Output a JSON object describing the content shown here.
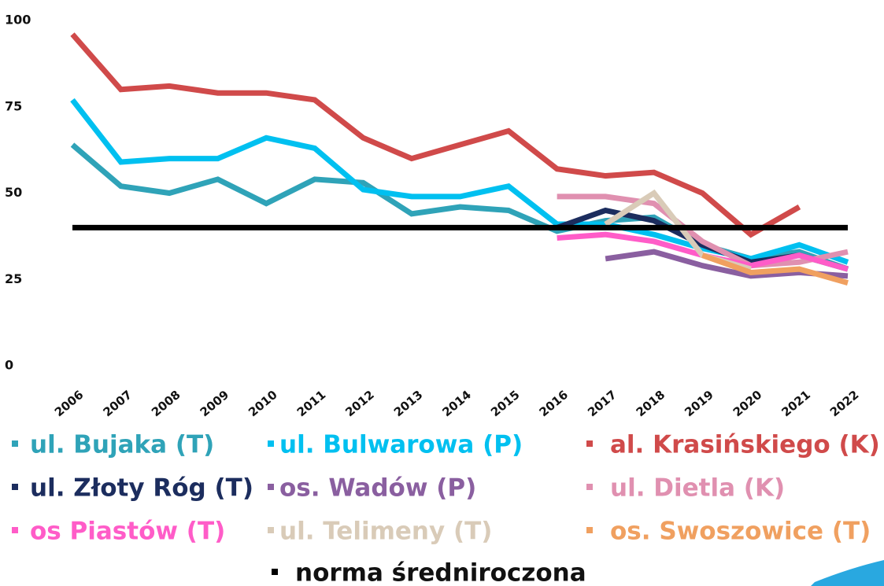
{
  "chart_data": {
    "type": "line",
    "categories": [
      "2006",
      "2007",
      "2008",
      "2009",
      "2010",
      "2011",
      "2012",
      "2013",
      "2014",
      "2015",
      "2016",
      "2017",
      "2018",
      "2019",
      "2020",
      "2021",
      "2022"
    ],
    "ylim": [
      0,
      100
    ],
    "yticks": [
      0,
      25,
      50,
      75,
      100
    ],
    "grid": false,
    "legend": "bottom",
    "series": [
      {
        "name": "ul. Bujaka (T)",
        "color": "#2fa3b8",
        "values": [
          64,
          52,
          50,
          54,
          47,
          54,
          53,
          44,
          46,
          45,
          39,
          42,
          43,
          35,
          31,
          33,
          28
        ]
      },
      {
        "name": "ul. Bulwarowa (P)",
        "color": "#00c0f0",
        "values": [
          77,
          59,
          60,
          60,
          66,
          63,
          51,
          49,
          49,
          52,
          41,
          41,
          38,
          34,
          31,
          35,
          30
        ]
      },
      {
        "name": "al. Krasińskiego (K)",
        "color": "#d04a4a",
        "values": [
          96,
          80,
          81,
          79,
          79,
          77,
          66,
          60,
          64,
          68,
          57,
          55,
          56,
          50,
          38,
          46,
          null
        ]
      },
      {
        "name": "ul. Złoty Róg (T)",
        "color": "#1c2d5e",
        "values": [
          null,
          null,
          null,
          null,
          null,
          null,
          null,
          null,
          null,
          null,
          40,
          45,
          42,
          35,
          30,
          32,
          28
        ]
      },
      {
        "name": "os. Wadów (P)",
        "color": "#8a5fa0",
        "values": [
          null,
          null,
          null,
          null,
          null,
          null,
          null,
          null,
          null,
          null,
          null,
          31,
          33,
          29,
          26,
          27,
          26
        ]
      },
      {
        "name": "ul. Dietla (K)",
        "color": "#e090b0",
        "values": [
          null,
          null,
          null,
          null,
          null,
          null,
          null,
          null,
          null,
          null,
          49,
          49,
          47,
          36,
          29,
          30,
          33
        ]
      },
      {
        "name": "os Piastów (T)",
        "color": "#ff5cc8",
        "values": [
          null,
          null,
          null,
          null,
          null,
          null,
          null,
          null,
          null,
          null,
          37,
          38,
          36,
          32,
          29,
          32,
          28
        ]
      },
      {
        "name": "ul. Telimeny (T)",
        "color": "#d9cbb8",
        "values": [
          null,
          null,
          null,
          null,
          null,
          null,
          null,
          null,
          null,
          null,
          null,
          41,
          50,
          32,
          28,
          null,
          null
        ]
      },
      {
        "name": "os. Swoszowice (T)",
        "color": "#f0a060",
        "values": [
          null,
          null,
          null,
          null,
          null,
          null,
          null,
          null,
          null,
          null,
          null,
          null,
          null,
          32,
          27,
          28,
          24
        ]
      },
      {
        "name": "norma średniroczona",
        "color": "#000000",
        "values": [
          40,
          40,
          40,
          40,
          40,
          40,
          40,
          40,
          40,
          40,
          40,
          40,
          40,
          40,
          40,
          40,
          40
        ]
      }
    ]
  }
}
